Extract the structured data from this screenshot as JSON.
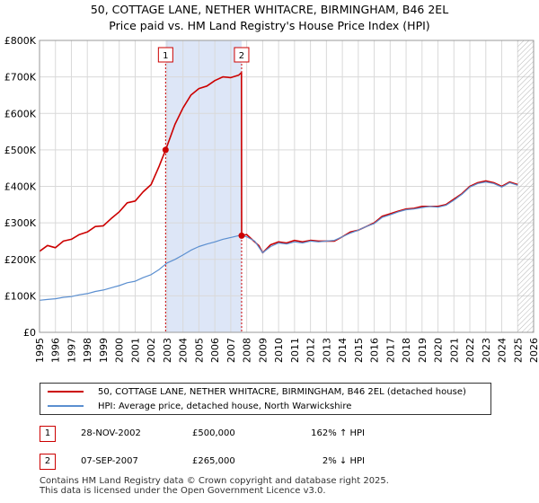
{
  "title": {
    "line1": "50, COTTAGE LANE, NETHER WHITACRE, BIRMINGHAM, B46 2EL",
    "line2": "Price paid vs. HM Land Registry's House Price Index (HPI)"
  },
  "chart_data": {
    "type": "line",
    "title": "50, COTTAGE LANE, NETHER WHITACRE, BIRMINGHAM, B46 2EL — Price paid vs. HM Land Registry's House Price Index (HPI)",
    "xlabel": "",
    "ylabel": "",
    "xlim": [
      1995,
      2026
    ],
    "ylim": [
      0,
      800000
    ],
    "x_ticks": [
      "1995",
      "1996",
      "1997",
      "1998",
      "1999",
      "2000",
      "2001",
      "2002",
      "2003",
      "2004",
      "2005",
      "2006",
      "2007",
      "2008",
      "2009",
      "2010",
      "2011",
      "2012",
      "2013",
      "2014",
      "2015",
      "2016",
      "2017",
      "2018",
      "2019",
      "2020",
      "2021",
      "2022",
      "2023",
      "2024",
      "2025",
      "2026"
    ],
    "y_ticks": [
      {
        "value": 0,
        "label": "£0"
      },
      {
        "value": 100000,
        "label": "£100K"
      },
      {
        "value": 200000,
        "label": "£200K"
      },
      {
        "value": 300000,
        "label": "£300K"
      },
      {
        "value": 400000,
        "label": "£400K"
      },
      {
        "value": 500000,
        "label": "£500K"
      },
      {
        "value": 600000,
        "label": "£600K"
      },
      {
        "value": 700000,
        "label": "£700K"
      },
      {
        "value": 800000,
        "label": "£800K"
      }
    ],
    "grid": true,
    "shaded_period": [
      2002.91,
      2007.68
    ],
    "forecast_from": 2025.0,
    "series": [
      {
        "name": "50, COTTAGE LANE, NETHER WHITACRE, BIRMINGHAM, B46 2EL (detached house)",
        "color": "#cc0000",
        "x": [
          1995.0,
          1995.5,
          1996.0,
          1996.5,
          1997.0,
          1997.5,
          1998.0,
          1998.5,
          1999.0,
          1999.5,
          2000.0,
          2000.5,
          2001.0,
          2001.5,
          2002.0,
          2002.5,
          2002.91,
          2003.0,
          2003.5,
          2004.0,
          2004.5,
          2005.0,
          2005.5,
          2006.0,
          2006.5,
          2007.0,
          2007.5,
          2007.67,
          2007.68,
          2008.0,
          2008.5,
          2008.75,
          2009.0,
          2009.5,
          2010.0,
          2010.5,
          2011.0,
          2011.5,
          2012.0,
          2012.5,
          2013.0,
          2013.5,
          2014.0,
          2014.5,
          2015.0,
          2015.5,
          2016.0,
          2016.5,
          2017.0,
          2017.5,
          2018.0,
          2018.5,
          2019.0,
          2019.5,
          2020.0,
          2020.5,
          2021.0,
          2021.5,
          2022.0,
          2022.5,
          2023.0,
          2023.5,
          2024.0,
          2024.5,
          2025.0
        ],
        "values": [
          222000,
          238000,
          232000,
          250000,
          255000,
          268000,
          275000,
          290000,
          292000,
          312000,
          330000,
          355000,
          360000,
          385000,
          405000,
          455000,
          500000,
          510000,
          570000,
          615000,
          650000,
          668000,
          675000,
          690000,
          700000,
          698000,
          705000,
          712000,
          265000,
          268000,
          248000,
          238000,
          218000,
          240000,
          248000,
          245000,
          252000,
          248000,
          252000,
          250000,
          250000,
          250000,
          262000,
          275000,
          280000,
          290000,
          300000,
          318000,
          325000,
          332000,
          338000,
          340000,
          345000,
          345000,
          345000,
          350000,
          365000,
          380000,
          400000,
          410000,
          415000,
          410000,
          400000,
          412000,
          405000
        ]
      },
      {
        "name": "HPI: Average price, detached house, North Warwickshire",
        "color": "#5b8fd0",
        "x": [
          1995.0,
          1995.5,
          1996.0,
          1996.5,
          1997.0,
          1997.5,
          1998.0,
          1998.5,
          1999.0,
          1999.5,
          2000.0,
          2000.5,
          2001.0,
          2001.5,
          2002.0,
          2002.5,
          2003.0,
          2003.5,
          2004.0,
          2004.5,
          2005.0,
          2005.5,
          2006.0,
          2006.5,
          2007.0,
          2007.5,
          2008.0,
          2008.5,
          2009.0,
          2009.5,
          2010.0,
          2010.5,
          2011.0,
          2011.5,
          2012.0,
          2012.5,
          2013.0,
          2013.5,
          2014.0,
          2014.5,
          2015.0,
          2015.5,
          2016.0,
          2016.5,
          2017.0,
          2017.5,
          2018.0,
          2018.5,
          2019.0,
          2019.5,
          2020.0,
          2020.5,
          2021.0,
          2021.5,
          2022.0,
          2022.5,
          2023.0,
          2023.5,
          2024.0,
          2024.5,
          2025.0
        ],
        "values": [
          88000,
          90000,
          92000,
          96000,
          98000,
          103000,
          106000,
          112000,
          116000,
          122000,
          128000,
          136000,
          140000,
          150000,
          158000,
          172000,
          190000,
          200000,
          212000,
          225000,
          235000,
          242000,
          248000,
          255000,
          260000,
          265000,
          262000,
          250000,
          218000,
          235000,
          245000,
          242000,
          248000,
          245000,
          250000,
          248000,
          250000,
          252000,
          262000,
          272000,
          280000,
          290000,
          298000,
          315000,
          322000,
          330000,
          336000,
          338000,
          342000,
          345000,
          343000,
          348000,
          362000,
          378000,
          398000,
          408000,
          412000,
          408000,
          398000,
          410000,
          403000
        ]
      }
    ],
    "markers": [
      {
        "label": "1",
        "x": 2002.91,
        "value": 500000
      },
      {
        "label": "2",
        "x": 2007.68,
        "value": 265000
      }
    ]
  },
  "legend": {
    "items": [
      {
        "label": "50, COTTAGE LANE, NETHER WHITACRE, BIRMINGHAM, B46 2EL (detached house)",
        "color": "#cc0000"
      },
      {
        "label": "HPI: Average price, detached house, North Warwickshire",
        "color": "#5b8fd0"
      }
    ]
  },
  "transactions": [
    {
      "num": "1",
      "date": "28-NOV-2002",
      "price": "£500,000",
      "hpi": "162% ↑ HPI"
    },
    {
      "num": "2",
      "date": "07-SEP-2007",
      "price": "£265,000",
      "hpi": "2% ↓ HPI"
    }
  ],
  "footer": {
    "line1": "Contains HM Land Registry data © Crown copyright and database right 2025.",
    "line2": "This data is licensed under the Open Government Licence v3.0."
  }
}
